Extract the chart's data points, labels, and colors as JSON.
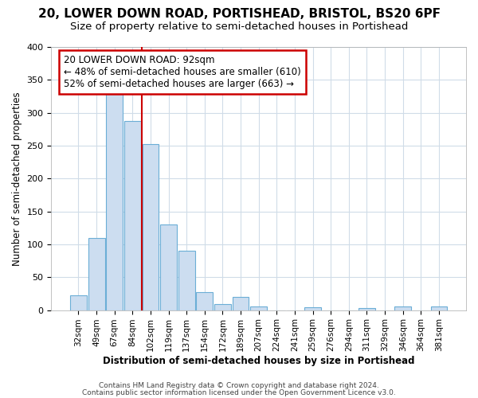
{
  "title1": "20, LOWER DOWN ROAD, PORTISHEAD, BRISTOL, BS20 6PF",
  "title2": "Size of property relative to semi-detached houses in Portishead",
  "xlabel": "Distribution of semi-detached houses by size in Portishead",
  "ylabel": "Number of semi-detached properties",
  "categories": [
    "32sqm",
    "49sqm",
    "67sqm",
    "84sqm",
    "102sqm",
    "119sqm",
    "137sqm",
    "154sqm",
    "172sqm",
    "189sqm",
    "207sqm",
    "224sqm",
    "241sqm",
    "259sqm",
    "276sqm",
    "294sqm",
    "311sqm",
    "329sqm",
    "346sqm",
    "364sqm",
    "381sqm"
  ],
  "values": [
    22,
    110,
    330,
    287,
    252,
    130,
    90,
    27,
    9,
    20,
    6,
    0,
    0,
    4,
    0,
    0,
    3,
    0,
    5,
    0,
    5
  ],
  "bar_color": "#ccddf0",
  "bar_edge_color": "#6baed6",
  "annotation_text": "20 LOWER DOWN ROAD: 92sqm\n← 48% of semi-detached houses are smaller (610)\n52% of semi-detached houses are larger (663) →",
  "annotation_box_color": "#ffffff",
  "annotation_box_edge": "#cc0000",
  "redline_x": 3.5,
  "ylim": [
    0,
    400
  ],
  "yticks": [
    0,
    50,
    100,
    150,
    200,
    250,
    300,
    350,
    400
  ],
  "footer1": "Contains HM Land Registry data © Crown copyright and database right 2024.",
  "footer2": "Contains public sector information licensed under the Open Government Licence v3.0.",
  "bg_color": "#ffffff",
  "plot_bg_color": "#ffffff",
  "grid_color": "#d0dce8",
  "title1_fontsize": 11,
  "title2_fontsize": 9.5
}
